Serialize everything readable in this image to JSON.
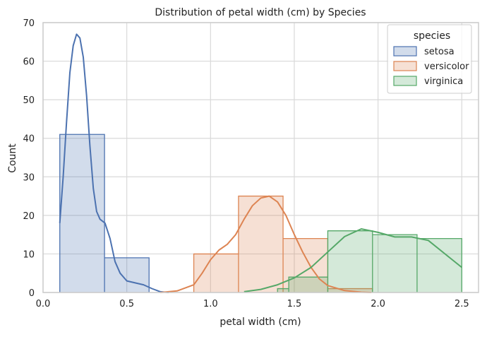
{
  "chart_data": {
    "type": "histogram",
    "title": "Distribution of petal width (cm) by Species",
    "xlabel": "petal width (cm)",
    "ylabel": "Count",
    "xlim": [
      0.0,
      2.6
    ],
    "ylim": [
      0,
      70
    ],
    "x_ticks": [
      "0.0",
      "0.5",
      "1.0",
      "1.5",
      "2.0",
      "2.5"
    ],
    "x_tick_values": [
      0.0,
      0.5,
      1.0,
      1.5,
      2.0,
      2.5
    ],
    "y_ticks": [
      "0",
      "10",
      "20",
      "30",
      "40",
      "50",
      "60",
      "70"
    ],
    "y_tick_values": [
      0,
      10,
      20,
      30,
      40,
      50,
      60,
      70
    ],
    "grid": true,
    "legend": {
      "title": "species",
      "placement": "top-right"
    },
    "series": [
      {
        "name": "setosa",
        "color": "#4c72b0",
        "bins": [
          {
            "x0": 0.1,
            "x1": 0.367,
            "count": 41
          },
          {
            "x0": 0.367,
            "x1": 0.633,
            "count": 9
          }
        ],
        "kde": [
          [
            0.1,
            18
          ],
          [
            0.12,
            30
          ],
          [
            0.14,
            44
          ],
          [
            0.16,
            57
          ],
          [
            0.18,
            64
          ],
          [
            0.2,
            67
          ],
          [
            0.22,
            66
          ],
          [
            0.24,
            61
          ],
          [
            0.26,
            51
          ],
          [
            0.28,
            38
          ],
          [
            0.3,
            27
          ],
          [
            0.32,
            21
          ],
          [
            0.34,
            19
          ],
          [
            0.37,
            18
          ],
          [
            0.4,
            14
          ],
          [
            0.43,
            8
          ],
          [
            0.46,
            5
          ],
          [
            0.5,
            3
          ],
          [
            0.55,
            2.5
          ],
          [
            0.6,
            2
          ],
          [
            0.65,
            1
          ],
          [
            0.7,
            0.2
          ],
          [
            0.75,
            0
          ]
        ]
      },
      {
        "name": "versicolor",
        "color": "#dd8452",
        "bins": [
          {
            "x0": 0.9,
            "x1": 1.167,
            "count": 10
          },
          {
            "x0": 1.167,
            "x1": 1.433,
            "count": 25
          },
          {
            "x0": 1.433,
            "x1": 1.7,
            "count": 14
          },
          {
            "x0": 1.7,
            "x1": 1.967,
            "count": 1
          }
        ],
        "kde": [
          [
            0.7,
            0
          ],
          [
            0.8,
            0.4
          ],
          [
            0.9,
            2
          ],
          [
            0.95,
            5
          ],
          [
            1.0,
            8.5
          ],
          [
            1.05,
            11
          ],
          [
            1.1,
            12.5
          ],
          [
            1.15,
            15
          ],
          [
            1.2,
            19
          ],
          [
            1.25,
            22.5
          ],
          [
            1.3,
            24.5
          ],
          [
            1.35,
            25
          ],
          [
            1.4,
            23.5
          ],
          [
            1.45,
            20
          ],
          [
            1.5,
            15
          ],
          [
            1.55,
            10.5
          ],
          [
            1.6,
            6.5
          ],
          [
            1.65,
            3.5
          ],
          [
            1.7,
            1.8
          ],
          [
            1.8,
            0.5
          ],
          [
            1.9,
            0.1
          ],
          [
            1.96,
            0
          ]
        ]
      },
      {
        "name": "virginica",
        "color": "#55a868",
        "bins": [
          {
            "x0": 1.4,
            "x1": 1.467,
            "count": 1
          },
          {
            "x0": 1.467,
            "x1": 1.7,
            "count": 4
          },
          {
            "x0": 1.7,
            "x1": 1.967,
            "count": 16
          },
          {
            "x0": 1.967,
            "x1": 2.233,
            "count": 15
          },
          {
            "x0": 2.233,
            "x1": 2.5,
            "count": 14
          }
        ],
        "kde": [
          [
            1.2,
            0.2
          ],
          [
            1.3,
            0.8
          ],
          [
            1.4,
            2
          ],
          [
            1.5,
            3.8
          ],
          [
            1.6,
            6.5
          ],
          [
            1.7,
            10.5
          ],
          [
            1.8,
            14.5
          ],
          [
            1.9,
            16.5
          ],
          [
            2.0,
            15.6
          ],
          [
            2.1,
            14.4
          ],
          [
            2.2,
            14.4
          ],
          [
            2.3,
            13.5
          ],
          [
            2.4,
            10
          ],
          [
            2.5,
            6.5
          ]
        ]
      }
    ]
  }
}
